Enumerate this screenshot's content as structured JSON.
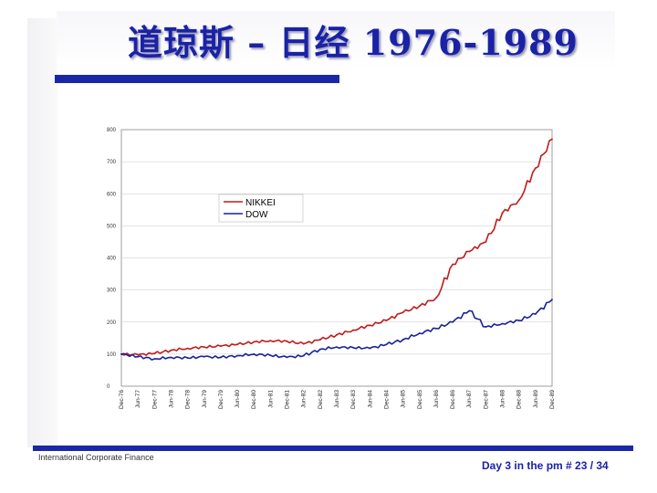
{
  "slide": {
    "title": "道琼斯 – 日经 1976-1989",
    "footer_left": "International Corporate Finance",
    "footer_right": "Day 3 in the pm # 23 / 34"
  },
  "colors": {
    "accent": "#1a28a8",
    "title": "#1a22a6",
    "nikkei": "#c21a1a",
    "dow": "#1a2299"
  },
  "chart_data": {
    "type": "line",
    "title": "",
    "xlabel": "",
    "ylabel": "",
    "ylim": [
      0,
      800
    ],
    "yticks": [
      "0",
      "100",
      "200",
      "300",
      "400",
      "500",
      "600",
      "700",
      "800"
    ],
    "grid": true,
    "legend": "upper-left, inside plot",
    "categories": [
      "Dec-76",
      "Jun-77",
      "Dec-77",
      "Jun-78",
      "Dec-78",
      "Jun-79",
      "Dec-79",
      "Jun-80",
      "Dec-80",
      "Jun-81",
      "Dec-81",
      "Jun-82",
      "Dec-82",
      "Jun-83",
      "Dec-83",
      "Jun-84",
      "Dec-84",
      "Jun-85",
      "Dec-85",
      "Jun-86",
      "Dec-86",
      "Jun-87",
      "Dec-87",
      "Jun-88",
      "Dec-88",
      "Jun-89",
      "Dec-89"
    ],
    "series": [
      {
        "name": "NIKKEI",
        "color": "#c21a1a",
        "values": [
          100,
          98,
          102,
          112,
          118,
          122,
          125,
          130,
          138,
          142,
          140,
          132,
          145,
          160,
          175,
          190,
          205,
          230,
          250,
          275,
          380,
          420,
          450,
          540,
          580,
          680,
          770
        ]
      },
      {
        "name": "DOW",
        "color": "#1a2299",
        "values": [
          100,
          92,
          85,
          90,
          88,
          92,
          90,
          95,
          100,
          96,
          90,
          95,
          115,
          122,
          120,
          118,
          130,
          145,
          165,
          180,
          200,
          235,
          185,
          195,
          205,
          225,
          270
        ]
      }
    ]
  }
}
